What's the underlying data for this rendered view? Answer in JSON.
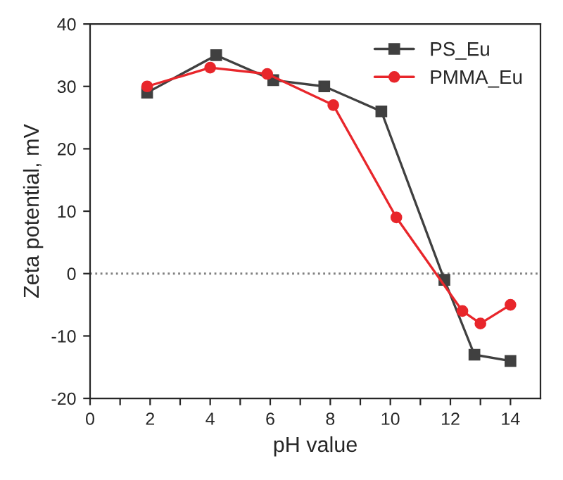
{
  "chart_data": {
    "type": "line",
    "xlabel": "pH value",
    "ylabel": "Zeta potential, mV",
    "xlim": [
      0,
      15
    ],
    "ylim": [
      -20,
      40
    ],
    "xticks": [
      0,
      {
        "value": 1,
        "label": null
      },
      2,
      {
        "value": 3,
        "label": null
      },
      4,
      {
        "value": 5,
        "label": null
      },
      6,
      {
        "value": 7,
        "label": null
      },
      8,
      {
        "value": 9,
        "label": null
      },
      10,
      {
        "value": 11,
        "label": null
      },
      12,
      {
        "value": 13,
        "label": null
      },
      14
    ],
    "yticks": [
      -20,
      -10,
      0,
      10,
      20,
      30,
      40
    ],
    "series": [
      {
        "name": "PS_Eu",
        "color": "#404040",
        "marker": "square",
        "x": [
          1.9,
          4.2,
          6.1,
          7.8,
          9.7,
          11.8,
          12.8,
          14
        ],
        "values": [
          29,
          35,
          31,
          30,
          26,
          -1,
          -13,
          -14
        ]
      },
      {
        "name": "PMMA_Eu",
        "color": "#e8262b",
        "marker": "circle",
        "x": [
          1.9,
          4.0,
          5.9,
          8.1,
          10.2,
          12.4,
          13,
          14
        ],
        "values": [
          30,
          33,
          32,
          27,
          9,
          -6,
          -8,
          -5
        ]
      }
    ],
    "ref_lines": [
      {
        "axis": "y",
        "value": 0,
        "color": "#808080",
        "line_style": "dotted"
      }
    ],
    "legend": "top right",
    "grid": false
  }
}
